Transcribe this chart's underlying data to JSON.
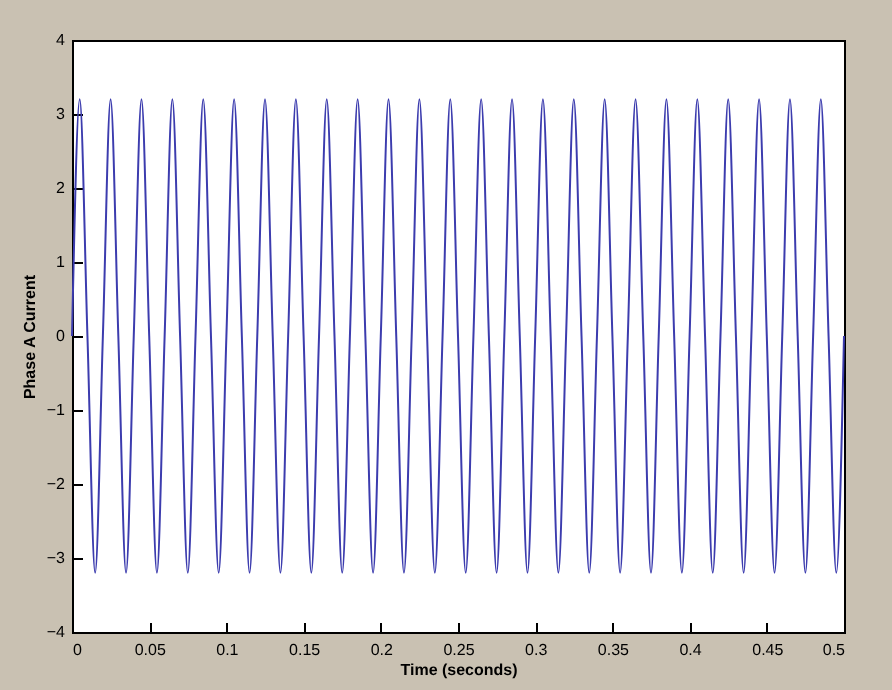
{
  "chart_data": {
    "type": "line",
    "xlabel": "Time (seconds)",
    "ylabel": "Phase A Current",
    "x": [
      0,
      0.005,
      0.01,
      0.015,
      0.02,
      0.025,
      0.03,
      0.035,
      0.04,
      0.045,
      0.05,
      0.055,
      0.06,
      0.065,
      0.07,
      0.075,
      0.08,
      0.085,
      0.09,
      0.095,
      0.1,
      0.105,
      0.11,
      0.115,
      0.12,
      0.125,
      0.13,
      0.135,
      0.14,
      0.145,
      0.15,
      0.155,
      0.16,
      0.165,
      0.17,
      0.175,
      0.18,
      0.185,
      0.19,
      0.195,
      0.2,
      0.205,
      0.21,
      0.215,
      0.22,
      0.225,
      0.23,
      0.235,
      0.24,
      0.245,
      0.25,
      0.255,
      0.26,
      0.265,
      0.27,
      0.275,
      0.28,
      0.285,
      0.29,
      0.295,
      0.3,
      0.305,
      0.31,
      0.315,
      0.32,
      0.325,
      0.33,
      0.335,
      0.34,
      0.345,
      0.35,
      0.355,
      0.36,
      0.365,
      0.37,
      0.375,
      0.38,
      0.385,
      0.39,
      0.395,
      0.4,
      0.405,
      0.41,
      0.415,
      0.42,
      0.425,
      0.43,
      0.435,
      0.44,
      0.445,
      0.45,
      0.455,
      0.46,
      0.465,
      0.47,
      0.475,
      0.48,
      0.485,
      0.49,
      0.495,
      0.5
    ],
    "series": [
      {
        "color": "#3c3cae",
        "values": [
          0,
          3.2,
          0,
          -3.2,
          0,
          3.2,
          0,
          -3.2,
          0,
          3.2,
          0,
          -3.2,
          0,
          3.2,
          0,
          -3.2,
          0,
          3.2,
          0,
          -3.2,
          0,
          3.2,
          0,
          -3.2,
          0,
          3.2,
          0,
          -3.2,
          0,
          3.2,
          0,
          -3.2,
          0,
          3.2,
          0,
          -3.2,
          0,
          3.2,
          0,
          -3.2,
          0,
          3.2,
          0,
          -3.2,
          0,
          3.2,
          0,
          -3.2,
          0,
          3.2,
          0,
          -3.2,
          0,
          3.2,
          0,
          -3.2,
          0,
          3.2,
          0,
          -3.2,
          0,
          3.2,
          0,
          -3.2,
          0,
          3.2,
          0,
          -3.2,
          0,
          3.2,
          0,
          -3.2,
          0,
          3.2,
          0,
          -3.2,
          0,
          3.2,
          0,
          -3.2,
          0,
          3.2,
          0,
          -3.2,
          0,
          3.2,
          0,
          -3.2,
          0,
          3.2,
          0,
          -3.2,
          0,
          3.2,
          0,
          -3.2,
          0,
          3.2,
          0,
          -3.2,
          0
        ]
      }
    ],
    "xlim": [
      0,
      0.5
    ],
    "xticks": [
      0,
      0.05,
      0.1,
      0.15,
      0.2,
      0.25,
      0.3,
      0.35,
      0.4,
      0.45,
      0.5
    ],
    "ylim": [
      -4,
      4
    ],
    "yticks": [
      -4,
      -3,
      -2,
      -1,
      0,
      1,
      2,
      3,
      4
    ],
    "grid": false
  }
}
